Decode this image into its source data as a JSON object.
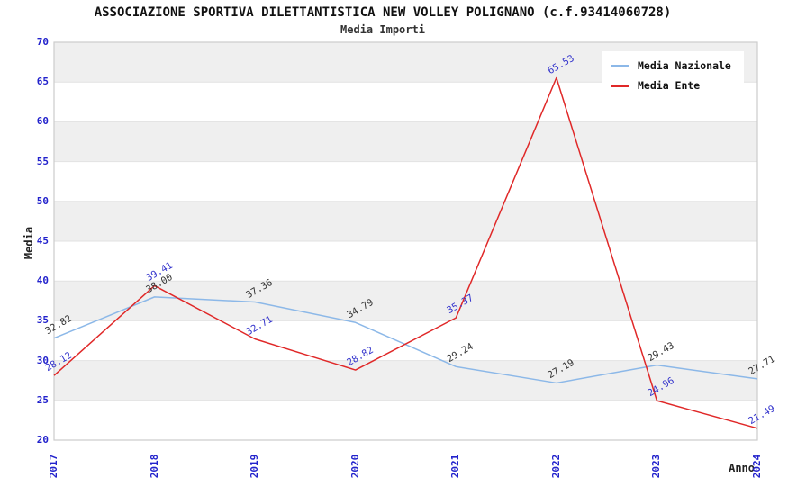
{
  "chart_data": {
    "type": "line",
    "title": "ASSOCIAZIONE SPORTIVA DILETTANTISTICA NEW VOLLEY POLIGNANO (c.f.93414060728)",
    "subtitle": "Media Importi",
    "xlabel": "Anno",
    "ylabel": "Media",
    "categories": [
      "2017",
      "2018",
      "2019",
      "2020",
      "2021",
      "2022",
      "2023",
      "2024"
    ],
    "series": [
      {
        "name": "Media Nazionale",
        "color": "#8cb8e8",
        "label_color": "#333333",
        "values": [
          32.82,
          38.0,
          37.36,
          34.79,
          29.24,
          27.19,
          29.43,
          27.71
        ]
      },
      {
        "name": "Media Ente",
        "color": "#e02828",
        "label_color": "#3333cc",
        "values": [
          28.12,
          39.41,
          32.71,
          28.82,
          35.37,
          65.53,
          24.96,
          21.49
        ]
      }
    ],
    "ylim": [
      20,
      70
    ],
    "ytick_step": 5,
    "yticks": [
      20,
      25,
      30,
      35,
      40,
      45,
      50,
      55,
      60,
      65,
      70
    ],
    "legend_position": "top-right",
    "grid": "horizontal-bands",
    "colors": {
      "tick_label": "#2222cc",
      "band": "#efefef",
      "gridline": "#e2e2e2",
      "border": "#cccccc"
    }
  }
}
